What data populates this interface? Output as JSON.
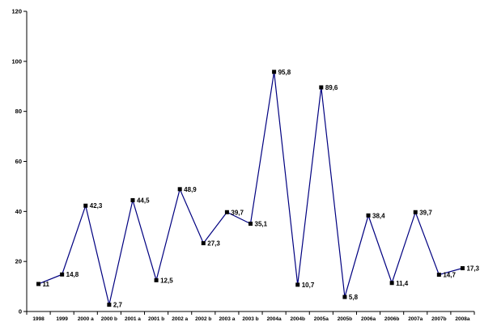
{
  "chart_data": {
    "type": "line",
    "title": "",
    "xlabel": "",
    "ylabel": "",
    "ylim": [
      0,
      120
    ],
    "yticks": [
      0,
      20,
      40,
      60,
      80,
      100,
      120
    ],
    "grid": false,
    "legend": "none",
    "categories": [
      "1998",
      "1999",
      "2000 a",
      "2000 b",
      "2001 a",
      "2001 b",
      "2002 a",
      "2002 b",
      "2003 a",
      "2003 b",
      "2004a",
      "2004b",
      "2005a",
      "2005b",
      "2006a",
      "2006b",
      "2007a",
      "2007b",
      "2008a"
    ],
    "series": [
      {
        "values": [
          11,
          14.8,
          42.3,
          2.7,
          44.5,
          12.5,
          48.9,
          27.3,
          39.7,
          35.1,
          95.8,
          10.7,
          89.6,
          5.8,
          38.4,
          11.4,
          39.7,
          14.7,
          17.3
        ],
        "labels": [
          "11",
          "14,8",
          "42,3",
          "2,7",
          "44,5",
          "12,5",
          "48,9",
          "27,3",
          "39,7",
          "35,1",
          "95,8",
          "10,7",
          "89,6",
          "5,8",
          "38,4",
          "11,4",
          "39,7",
          "14,7",
          "17,3"
        ],
        "color": "#000080",
        "marker_color": "#000000"
      }
    ]
  }
}
